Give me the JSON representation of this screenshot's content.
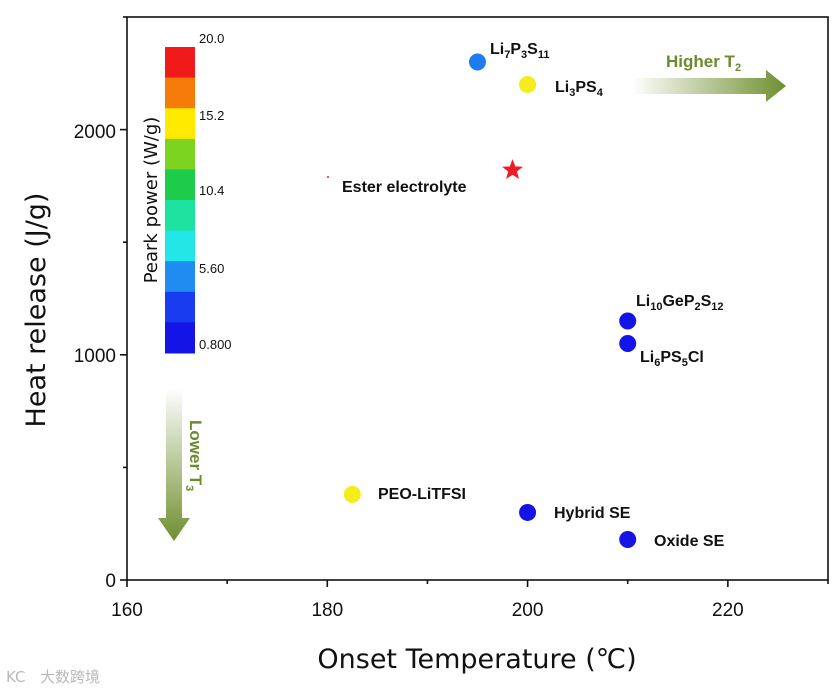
{
  "chart_data": {
    "type": "scatter",
    "xlabel": "Onset Temperature (℃)",
    "ylabel": "Heat release (J/g)",
    "xlim": [
      160,
      230
    ],
    "ylim": [
      0,
      2500
    ],
    "x_ticks": [
      "160",
      "180",
      "200",
      "220"
    ],
    "y_ticks": [
      "0",
      "1000",
      "2000"
    ],
    "points": [
      {
        "base": "Li",
        "subscripts": [
          [
            "Li",
            "7"
          ],
          [
            "P",
            "3"
          ],
          [
            "S",
            "11"
          ]
        ],
        "x": 195,
        "y": 2300,
        "color": "#1e7cf0",
        "marker": "circle"
      },
      {
        "base": "Li",
        "subscripts": [
          [
            "Li",
            "3"
          ],
          [
            "PS",
            "4"
          ]
        ],
        "x": 200,
        "y": 2200,
        "color": "#f5ec1c",
        "marker": "circle"
      },
      {
        "name": "Ester electrolyte",
        "x": 198.5,
        "y": 1820,
        "color": "#ee1c24",
        "marker": "star"
      },
      {
        "subscripts": [
          [
            "Li",
            "10"
          ],
          [
            "GeP",
            "2"
          ],
          [
            "S",
            "12"
          ]
        ],
        "x": 210,
        "y": 1150,
        "color": "#1414e6",
        "marker": "circle"
      },
      {
        "subscripts": [
          [
            "Li",
            "6"
          ],
          [
            "PS",
            "5"
          ],
          [
            "Cl",
            ""
          ]
        ],
        "x": 210,
        "y": 1050,
        "color": "#1414e6",
        "marker": "circle"
      },
      {
        "name": "PEO-LiTFSI",
        "x": 182.5,
        "y": 380,
        "color": "#f5ec1c",
        "marker": "circle"
      },
      {
        "name": "Hybrid SE",
        "x": 200,
        "y": 300,
        "color": "#1414e6",
        "marker": "circle"
      },
      {
        "name": "Oxide SE",
        "x": 210,
        "y": 180,
        "color": "#1414e6",
        "marker": "circle"
      }
    ],
    "colorbar": {
      "title": "Peark power (W/g)",
      "tick_labels": [
        "20.0",
        "15.2",
        "10.4",
        "5.60",
        "0.800"
      ],
      "colors_top_to_bottom": [
        "#f01a1a",
        "#f57c0a",
        "#ffea00",
        "#7ed321",
        "#1fcb4a",
        "#1ee3a0",
        "#23e6e6",
        "#1e8cf0",
        "#1a3cf0",
        "#1414e6"
      ]
    },
    "annotations": {
      "right_arrow": {
        "text": "Higher T",
        "sub": "2"
      },
      "down_arrow": {
        "text": "Lower T",
        "sub": "3"
      }
    }
  },
  "watermark": "大数跨境",
  "watermark_logo": "KC"
}
